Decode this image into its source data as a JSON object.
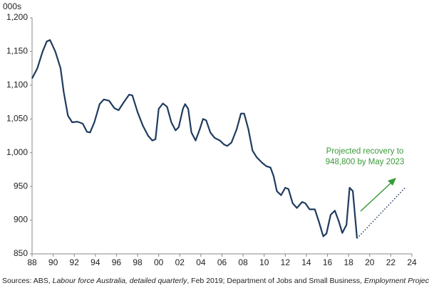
{
  "chart_data": {
    "type": "line",
    "y_axis_label": "000s",
    "annotation": [
      "Projected recovery to",
      "948,800 by May 2023"
    ],
    "source": [
      "Sources: ABS, ",
      "Labour force Australia, detailed quarterly",
      ", Feb 2019; Department of Jobs and Small Business, ",
      "Employment Projections",
      "."
    ],
    "series": [
      {
        "name": "Employment",
        "color": "#1f3b5e",
        "style": "solid",
        "x": [
          1988.0,
          1988.5,
          1989.0,
          1989.4,
          1989.7,
          1990.2,
          1990.7,
          1991.0,
          1991.4,
          1991.8,
          1992.3,
          1992.8,
          1993.2,
          1993.5,
          1993.9,
          1994.4,
          1994.8,
          1995.3,
          1995.8,
          1996.2,
          1996.7,
          1997.2,
          1997.5,
          1998.0,
          1998.5,
          1999.0,
          1999.4,
          1999.7,
          2000.0,
          2000.4,
          2000.8,
          2001.2,
          2001.6,
          2001.9,
          2002.3,
          2002.5,
          2002.8,
          2003.1,
          2003.5,
          2003.9,
          2004.2,
          2004.5,
          2004.9,
          2005.3,
          2005.8,
          2006.2,
          2006.5,
          2006.9,
          2007.4,
          2007.8,
          2008.1,
          2008.5,
          2008.9,
          2009.3,
          2009.8,
          2010.2,
          2010.6,
          2010.9,
          2011.2,
          2011.6,
          2012.0,
          2012.3,
          2012.7,
          2013.1,
          2013.6,
          2013.9,
          2014.3,
          2014.8,
          2015.2,
          2015.6,
          2015.9,
          2016.3,
          2016.7,
          2017.1,
          2017.4,
          2017.8,
          2018.1,
          2018.4,
          2018.8
        ],
        "values": [
          1110,
          1125,
          1150,
          1165,
          1167,
          1150,
          1125,
          1090,
          1055,
          1045,
          1046,
          1043,
          1031,
          1030,
          1045,
          1072,
          1079,
          1077,
          1066,
          1063,
          1075,
          1086,
          1085,
          1060,
          1040,
          1025,
          1018,
          1020,
          1065,
          1073,
          1068,
          1045,
          1033,
          1038,
          1065,
          1072,
          1065,
          1030,
          1018,
          1035,
          1050,
          1048,
          1030,
          1022,
          1018,
          1012,
          1010,
          1015,
          1035,
          1058,
          1058,
          1035,
          1003,
          993,
          985,
          980,
          978,
          965,
          943,
          937,
          948,
          946,
          925,
          918,
          927,
          925,
          916,
          916,
          897,
          876,
          880,
          908,
          914,
          897,
          881,
          893,
          948,
          943,
          873
        ]
      },
      {
        "name": "Projection",
        "color": "#1f3b5e",
        "style": "dotted",
        "x": [
          2018.8,
          2023.4
        ],
        "values": [
          873,
          948.8
        ]
      }
    ],
    "annotation_color": "#3a9a3a",
    "xlim": [
      1988,
      2024
    ],
    "xticks": [
      {
        "value": 1988,
        "label": "88"
      },
      {
        "value": 1990,
        "label": "90"
      },
      {
        "value": 1992,
        "label": "92"
      },
      {
        "value": 1994,
        "label": "94"
      },
      {
        "value": 1996,
        "label": "96"
      },
      {
        "value": 1998,
        "label": "98"
      },
      {
        "value": 2000,
        "label": "00"
      },
      {
        "value": 2002,
        "label": "02"
      },
      {
        "value": 2004,
        "label": "04"
      },
      {
        "value": 2006,
        "label": "06"
      },
      {
        "value": 2008,
        "label": "08"
      },
      {
        "value": 2010,
        "label": "10"
      },
      {
        "value": 2012,
        "label": "12"
      },
      {
        "value": 2014,
        "label": "14"
      },
      {
        "value": 2016,
        "label": "16"
      },
      {
        "value": 2018,
        "label": "18"
      },
      {
        "value": 2020,
        "label": "20"
      },
      {
        "value": 2022,
        "label": "22"
      },
      {
        "value": 2024,
        "label": "24"
      }
    ],
    "ylim": [
      850,
      1200
    ],
    "yticks": [
      850,
      900,
      950,
      {
        "value": 1000,
        "label": "1,000"
      },
      {
        "value": 1050,
        "label": "1,050"
      },
      {
        "value": 1100,
        "label": "1,100"
      },
      {
        "value": 1150,
        "label": "1,150"
      },
      {
        "value": 1200,
        "label": "1,200"
      }
    ],
    "grid": false
  }
}
